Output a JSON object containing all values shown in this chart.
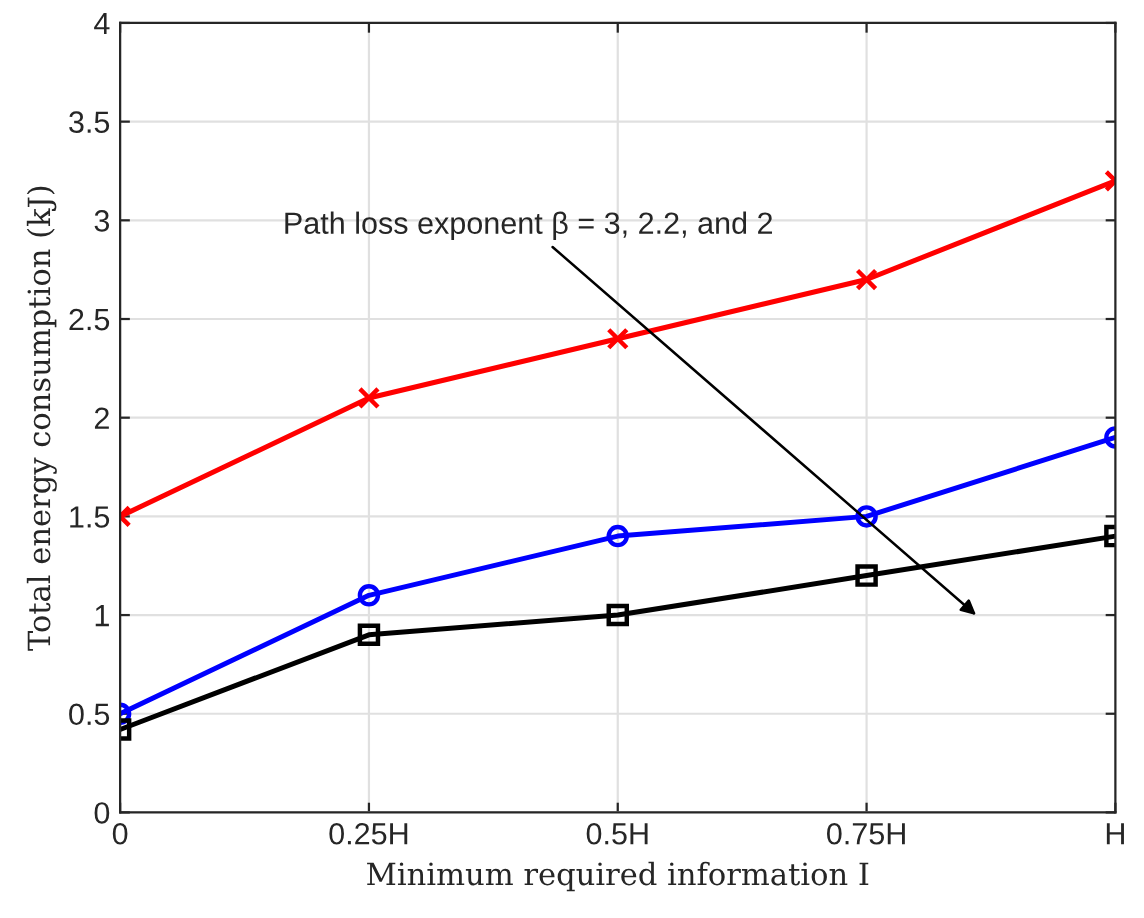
{
  "chart_data": {
    "type": "line",
    "xlabel": "Minimum required information I",
    "ylabel": "Total energy consumption (kJ)",
    "x": [
      0,
      0.25,
      0.5,
      0.75,
      1
    ],
    "series": [
      {
        "color": "#ff0000",
        "marker": "cross",
        "values": [
          1.5,
          2.1,
          2.4,
          2.7,
          3.2
        ]
      },
      {
        "color": "#0000ff",
        "marker": "circle",
        "values": [
          0.5,
          1.1,
          1.4,
          1.5,
          1.9
        ]
      },
      {
        "color": "#000000",
        "marker": "square",
        "values": [
          0.42,
          0.9,
          1.0,
          1.2,
          1.4
        ]
      }
    ],
    "xlim": [
      0,
      1
    ],
    "xticks": [
      0,
      {
        "value": 0.25,
        "label": "0.25H"
      },
      {
        "value": 0.5,
        "label": "0.5H"
      },
      {
        "value": 0.75,
        "label": "0.75H"
      },
      {
        "value": 1,
        "label": "H"
      }
    ],
    "ylim": [
      0,
      4
    ],
    "yticks": [
      0,
      0.5,
      1,
      1.5,
      2,
      2.5,
      3,
      3.5,
      4
    ],
    "annotations": [
      "Path loss exponent β = 3, 2.2, and 2"
    ],
    "grid": true,
    "line_style": "solid",
    "legend": false
  }
}
